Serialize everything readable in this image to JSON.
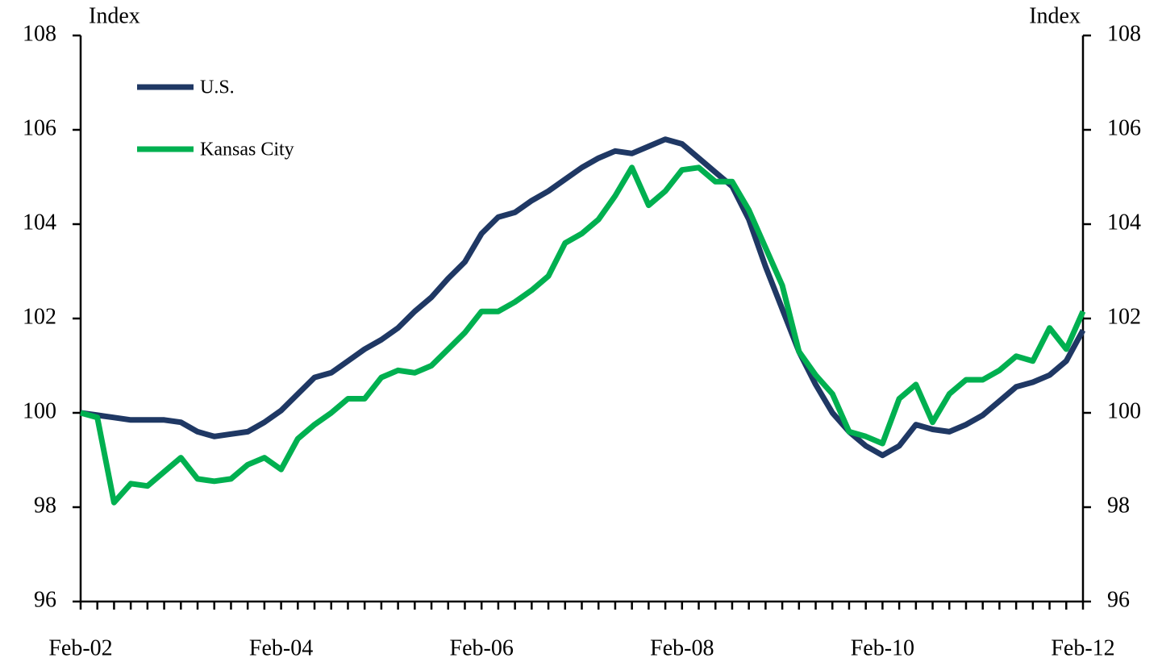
{
  "chart_data": {
    "type": "line",
    "y_label": "Index",
    "y2_label": "Index",
    "categories": [
      "Feb-02",
      null,
      null,
      null,
      null,
      null,
      null,
      null,
      null,
      null,
      null,
      null,
      "Feb-04",
      null,
      null,
      null,
      null,
      null,
      null,
      null,
      null,
      null,
      null,
      null,
      "Feb-06",
      null,
      null,
      null,
      null,
      null,
      null,
      null,
      null,
      null,
      null,
      null,
      "Feb-08",
      null,
      null,
      null,
      null,
      null,
      null,
      null,
      null,
      null,
      null,
      null,
      "Feb-10",
      null,
      null,
      null,
      null,
      null,
      null,
      null,
      null,
      null,
      null,
      null,
      "Feb-12"
    ],
    "series": [
      {
        "name": "U.S.",
        "color": "#1f3864",
        "values": [
          100.0,
          99.95,
          99.9,
          99.85,
          99.85,
          99.85,
          99.8,
          99.6,
          99.5,
          99.55,
          99.6,
          99.8,
          100.05,
          100.4,
          100.75,
          100.85,
          101.1,
          101.35,
          101.55,
          101.8,
          102.15,
          102.45,
          102.85,
          103.2,
          103.8,
          104.15,
          104.25,
          104.5,
          104.7,
          104.95,
          105.2,
          105.4,
          105.55,
          105.5,
          105.65,
          105.8,
          105.7,
          105.4,
          105.1,
          104.8,
          104.1,
          103.1,
          102.2,
          101.3,
          100.6,
          100.0,
          99.6,
          99.3,
          99.1,
          99.3,
          99.75,
          99.65,
          99.6,
          99.75,
          99.95,
          100.25,
          100.55,
          100.65,
          100.8,
          101.1,
          101.75
        ]
      },
      {
        "name": "Kansas City",
        "color": "#00b050",
        "values": [
          100.0,
          99.9,
          98.1,
          98.5,
          98.45,
          98.75,
          99.05,
          98.6,
          98.55,
          98.6,
          98.9,
          99.05,
          98.8,
          99.45,
          99.75,
          100.0,
          100.3,
          100.3,
          100.75,
          100.9,
          100.85,
          101.0,
          101.35,
          101.7,
          102.15,
          102.15,
          102.35,
          102.6,
          102.9,
          103.6,
          103.8,
          104.1,
          104.6,
          105.2,
          104.4,
          104.7,
          105.15,
          105.2,
          104.9,
          104.9,
          104.3,
          103.5,
          102.7,
          101.3,
          100.8,
          100.4,
          99.6,
          99.5,
          99.35,
          100.3,
          100.6,
          99.8,
          100.4,
          100.7,
          100.7,
          100.9,
          101.2,
          101.1,
          101.8,
          101.35,
          102.15
        ]
      }
    ],
    "ylim": [
      96,
      108
    ],
    "yticks": [
      96,
      98,
      100,
      102,
      104,
      106,
      108
    ],
    "y2lim": [
      96,
      108
    ],
    "y2ticks": [
      96,
      98,
      100,
      102,
      104,
      106,
      108
    ],
    "legend": "upper left",
    "grid": false
  }
}
